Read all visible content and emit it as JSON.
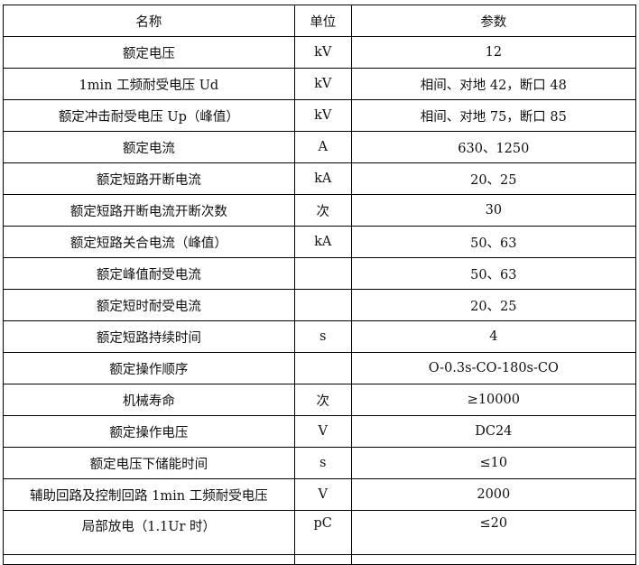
{
  "table": {
    "headers": [
      "名称",
      "单位",
      "参数"
    ],
    "rows": [
      [
        "额定电压",
        "kV",
        "12"
      ],
      [
        "1min 工频耐受电压 Ud",
        "kV",
        "相间、对地 42，断口 48"
      ],
      [
        "额定冲击耐受电压 Up（峰值）",
        "kV",
        "相间、对地 75，断口 85"
      ],
      [
        "额定电流",
        "A",
        "630、1250"
      ],
      [
        "额定短路开断电流",
        "kA",
        "20、25"
      ],
      [
        "额定短路开断电流开断次数",
        "次",
        "30"
      ],
      [
        "额定短路关合电流（峰值）",
        "kA",
        "50、63"
      ],
      [
        "额定峰值耐受电流",
        "",
        "50、63"
      ],
      [
        "额定短时耐受电流",
        "",
        "20、25"
      ],
      [
        "额定短路持续时间",
        "s",
        "4"
      ],
      [
        "额定操作顺序",
        "",
        "O-0.3s-CO-180s-CO"
      ],
      [
        "机械寿命",
        "次",
        "≥10000"
      ],
      [
        "额定操作电压",
        "V",
        "DC24"
      ],
      [
        "额定电压下储能时间",
        "s",
        "≤10"
      ],
      [
        "辅助回路及控制回路 1min 工频耐受电压",
        "V",
        "2000"
      ],
      [
        "局部放电（1.1Ur 时）",
        "pC",
        "≤20"
      ]
    ]
  }
}
